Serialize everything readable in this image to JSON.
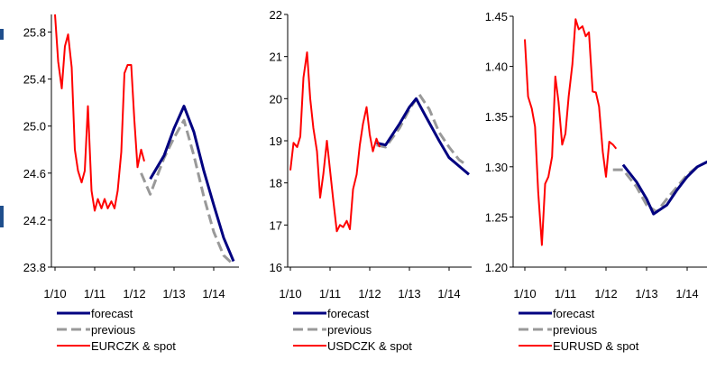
{
  "colors": {
    "forecast": "#000080",
    "previous": "#999999",
    "spot": "#ff0000",
    "axis": "#000000"
  },
  "chart_data": [
    {
      "type": "line",
      "ylim": [
        23.8,
        25.95
      ],
      "xlim": [
        2010,
        2014.5
      ],
      "yticks": [
        "23.8",
        "24.2",
        "24.6",
        "25.0",
        "25.4",
        "25.8"
      ],
      "xticks": [
        "1/10",
        "1/11",
        "1/12",
        "1/13",
        "1/14"
      ],
      "legend_placement": "bottom",
      "series": [
        {
          "name": "forecast",
          "key": "forecast",
          "style": "solid",
          "x": [
            2012.4,
            2012.75,
            2013.0,
            2013.25,
            2013.5,
            2013.75,
            2014.0,
            2014.25,
            2014.5
          ],
          "y": [
            24.55,
            24.75,
            24.98,
            25.17,
            24.95,
            24.62,
            24.33,
            24.05,
            23.85
          ]
        },
        {
          "name": "previous",
          "key": "previous",
          "style": "dashed",
          "x": [
            2012.17,
            2012.4,
            2012.75,
            2013.0,
            2013.25,
            2013.5,
            2013.75,
            2014.0,
            2014.25,
            2014.5
          ],
          "y": [
            24.6,
            24.42,
            24.73,
            24.9,
            25.05,
            24.75,
            24.4,
            24.1,
            23.9,
            23.82
          ]
        },
        {
          "name": "EURCZK & spot",
          "key": "spot",
          "style": "solid",
          "x": [
            2010.0,
            2010.08,
            2010.17,
            2010.25,
            2010.33,
            2010.42,
            2010.5,
            2010.58,
            2010.67,
            2010.75,
            2010.83,
            2010.92,
            2011.0,
            2011.08,
            2011.17,
            2011.25,
            2011.33,
            2011.42,
            2011.5,
            2011.58,
            2011.67,
            2011.75,
            2011.83,
            2011.92,
            2012.0,
            2012.08,
            2012.17,
            2012.25
          ],
          "y": [
            25.95,
            25.55,
            25.32,
            25.68,
            25.78,
            25.5,
            24.8,
            24.62,
            24.52,
            24.62,
            25.17,
            24.45,
            24.28,
            24.38,
            24.3,
            24.38,
            24.3,
            24.36,
            24.3,
            24.45,
            24.78,
            25.45,
            25.52,
            25.52,
            25.05,
            24.65,
            24.8,
            24.7
          ]
        }
      ]
    },
    {
      "type": "line",
      "ylim": [
        16,
        22
      ],
      "xlim": [
        2010,
        2014.5
      ],
      "yticks": [
        "16",
        "17",
        "18",
        "19",
        "20",
        "21",
        "22"
      ],
      "xticks": [
        "1/10",
        "1/11",
        "1/12",
        "1/13",
        "1/14"
      ],
      "legend_placement": "bottom",
      "series": [
        {
          "name": "forecast",
          "key": "forecast",
          "style": "solid",
          "x": [
            2012.17,
            2012.4,
            2012.75,
            2013.0,
            2013.17,
            2013.4,
            2013.75,
            2014.0,
            2014.25,
            2014.5
          ],
          "y": [
            18.95,
            18.9,
            19.4,
            19.8,
            20.0,
            19.6,
            19.0,
            18.6,
            18.4,
            18.2
          ]
        },
        {
          "name": "previous",
          "key": "previous",
          "style": "dashed",
          "x": [
            2012.17,
            2012.4,
            2012.75,
            2013.0,
            2013.25,
            2013.5,
            2013.75,
            2014.0,
            2014.25,
            2014.4
          ],
          "y": [
            18.9,
            18.85,
            19.3,
            19.75,
            20.1,
            19.75,
            19.2,
            18.85,
            18.55,
            18.45
          ]
        },
        {
          "name": "USDCZK & spot",
          "key": "spot",
          "style": "solid",
          "x": [
            2010.0,
            2010.08,
            2010.17,
            2010.25,
            2010.33,
            2010.42,
            2010.5,
            2010.58,
            2010.67,
            2010.75,
            2010.83,
            2010.92,
            2011.0,
            2011.08,
            2011.17,
            2011.25,
            2011.33,
            2011.42,
            2011.5,
            2011.58,
            2011.67,
            2011.75,
            2011.83,
            2011.92,
            2012.0,
            2012.08,
            2012.17,
            2012.25
          ],
          "y": [
            18.3,
            18.95,
            18.85,
            19.1,
            20.5,
            21.1,
            20.0,
            19.3,
            18.75,
            17.65,
            18.2,
            19.0,
            18.3,
            17.6,
            16.85,
            17.0,
            16.95,
            17.1,
            16.9,
            17.85,
            18.2,
            18.9,
            19.4,
            19.8,
            19.15,
            18.75,
            19.05,
            18.85
          ]
        }
      ]
    },
    {
      "type": "line",
      "ylim": [
        1.2,
        1.45
      ],
      "xlim": [
        2010,
        2014.5
      ],
      "yticks": [
        "1.20",
        "1.25",
        "1.30",
        "1.35",
        "1.40",
        "1.45"
      ],
      "xticks": [
        "1/10",
        "1/11",
        "1/12",
        "1/13",
        "1/14"
      ],
      "legend_placement": "bottom",
      "series": [
        {
          "name": "forecast",
          "key": "forecast",
          "style": "solid",
          "x": [
            2012.42,
            2012.75,
            2013.0,
            2013.17,
            2013.5,
            2013.75,
            2014.0,
            2014.25,
            2014.5
          ],
          "y": [
            1.302,
            1.285,
            1.268,
            1.253,
            1.262,
            1.277,
            1.29,
            1.3,
            1.305
          ]
        },
        {
          "name": "previous",
          "key": "previous",
          "style": "dashed",
          "x": [
            2012.17,
            2012.42,
            2012.75,
            2013.0,
            2013.25,
            2013.5,
            2013.75,
            2014.0,
            2014.25,
            2014.5
          ],
          "y": [
            1.297,
            1.297,
            1.28,
            1.262,
            1.255,
            1.268,
            1.28,
            1.292,
            1.3,
            1.305
          ]
        },
        {
          "name": "EURUSD & spot",
          "key": "spot",
          "style": "solid",
          "x": [
            2010.0,
            2010.08,
            2010.17,
            2010.25,
            2010.33,
            2010.42,
            2010.5,
            2010.58,
            2010.67,
            2010.75,
            2010.83,
            2010.92,
            2011.0,
            2011.08,
            2011.17,
            2011.25,
            2011.33,
            2011.42,
            2011.5,
            2011.58,
            2011.67,
            2011.75,
            2011.83,
            2011.92,
            2012.0,
            2012.08,
            2012.17,
            2012.25
          ],
          "y": [
            1.427,
            1.37,
            1.358,
            1.34,
            1.275,
            1.222,
            1.283,
            1.29,
            1.31,
            1.39,
            1.365,
            1.322,
            1.333,
            1.37,
            1.402,
            1.447,
            1.437,
            1.44,
            1.43,
            1.434,
            1.375,
            1.374,
            1.36,
            1.315,
            1.29,
            1.325,
            1.322,
            1.318
          ]
        }
      ]
    }
  ]
}
